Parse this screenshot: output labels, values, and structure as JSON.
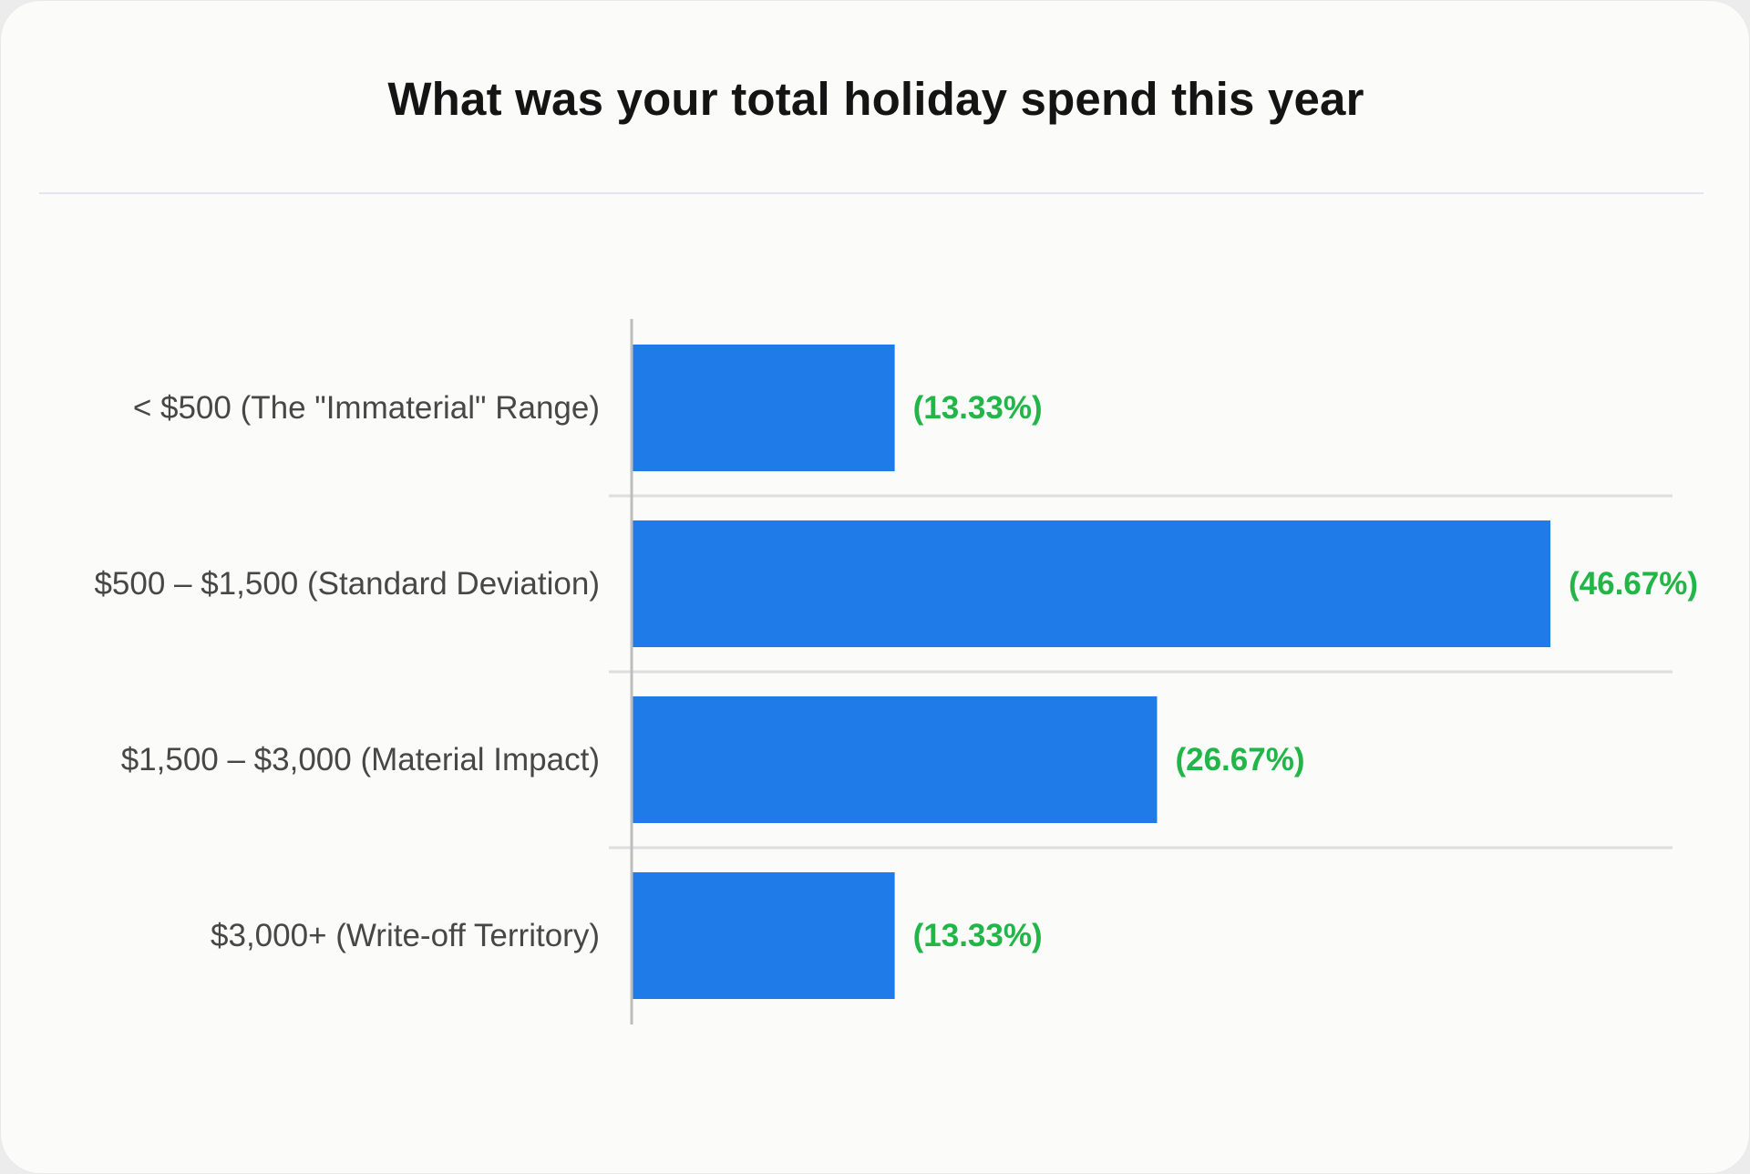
{
  "colors": {
    "bar": "#1f7be8",
    "value_label": "#22b547",
    "axis": "#bdbdbd",
    "separator": "#dedede"
  },
  "chart_data": {
    "type": "bar",
    "orientation": "horizontal",
    "title": "What was your total holiday spend this year",
    "categories": [
      "< $500 (The \"Immaterial\" Range)",
      "$500 – $1,500 (Standard Deviation)",
      "$1,500 – $3,000 (Material Impact)",
      "$3,000+ (Write-off Territory)"
    ],
    "values": [
      13.33,
      46.67,
      26.67,
      13.33
    ],
    "value_labels": [
      "(13.33%)",
      "(46.67%)",
      "(26.67%)",
      "(13.33%)"
    ],
    "unit": "%",
    "xlim": [
      0,
      46.67
    ],
    "grid": false
  }
}
